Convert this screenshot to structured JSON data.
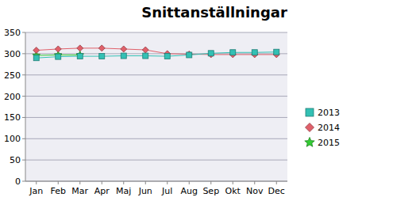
{
  "chart_data": {
    "type": "line",
    "title": "Snittanställningar",
    "categories": [
      "Jan",
      "Feb",
      "Mar",
      "Apr",
      "Maj",
      "Jun",
      "Jul",
      "Aug",
      "Sep",
      "Okt",
      "Nov",
      "Dec"
    ],
    "series": [
      {
        "name": "2013",
        "color": "#33c0b4",
        "marker": "square",
        "values": [
          290,
          293,
          294,
          294,
          295,
          295,
          294,
          297,
          301,
          303,
          303,
          304
        ]
      },
      {
        "name": "2014",
        "color": "#e0606a",
        "marker": "diamond",
        "values": [
          308,
          311,
          313,
          313,
          311,
          309,
          300,
          299,
          298,
          298,
          298,
          298
        ]
      },
      {
        "name": "2015",
        "color": "#33cc33",
        "marker": "star",
        "values": [
          296,
          297,
          297,
          null,
          null,
          null,
          null,
          null,
          null,
          null,
          null,
          null
        ]
      }
    ],
    "ylim": [
      0,
      350
    ],
    "yticks": [
      0,
      50,
      100,
      150,
      200,
      250,
      300,
      350
    ],
    "grid": true,
    "legend": "right"
  }
}
